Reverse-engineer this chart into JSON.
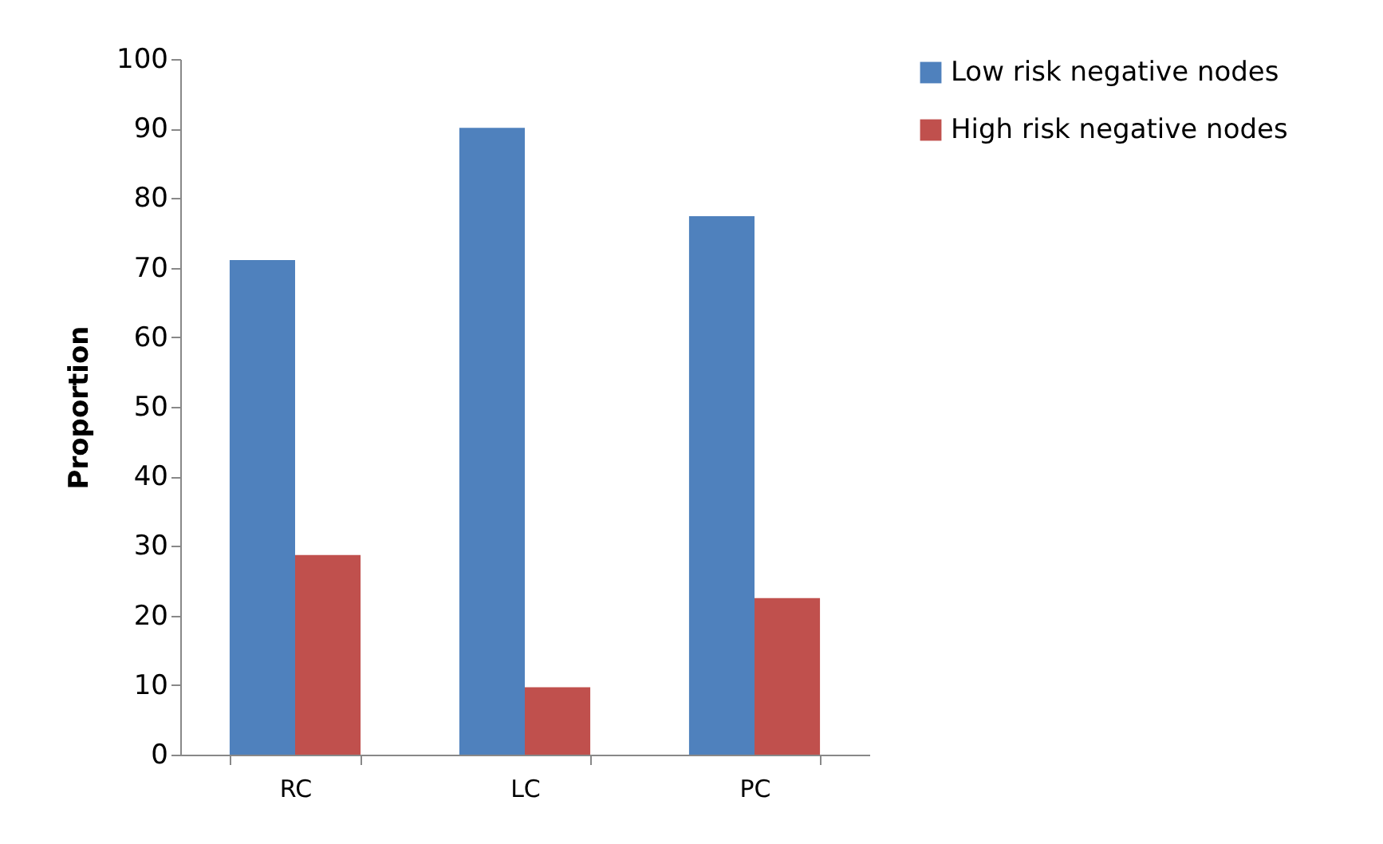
{
  "chart_data": {
    "type": "bar",
    "ylabel": "Proportion",
    "categories": [
      "RC",
      "LC",
      "PC"
    ],
    "series": [
      {
        "name": "Low risk negative nodes",
        "color": "#4f81bd",
        "values": [
          71.1,
          90.1,
          77.4
        ]
      },
      {
        "name": "High risk negative nodes",
        "color": "#c0504d",
        "values": [
          28.7,
          9.7,
          22.5
        ]
      }
    ],
    "ylim": [
      0,
      100
    ],
    "yticks": [
      0,
      10,
      20,
      30,
      40,
      50,
      60,
      70,
      80,
      90,
      100
    ],
    "grid": false,
    "legend": "right"
  }
}
